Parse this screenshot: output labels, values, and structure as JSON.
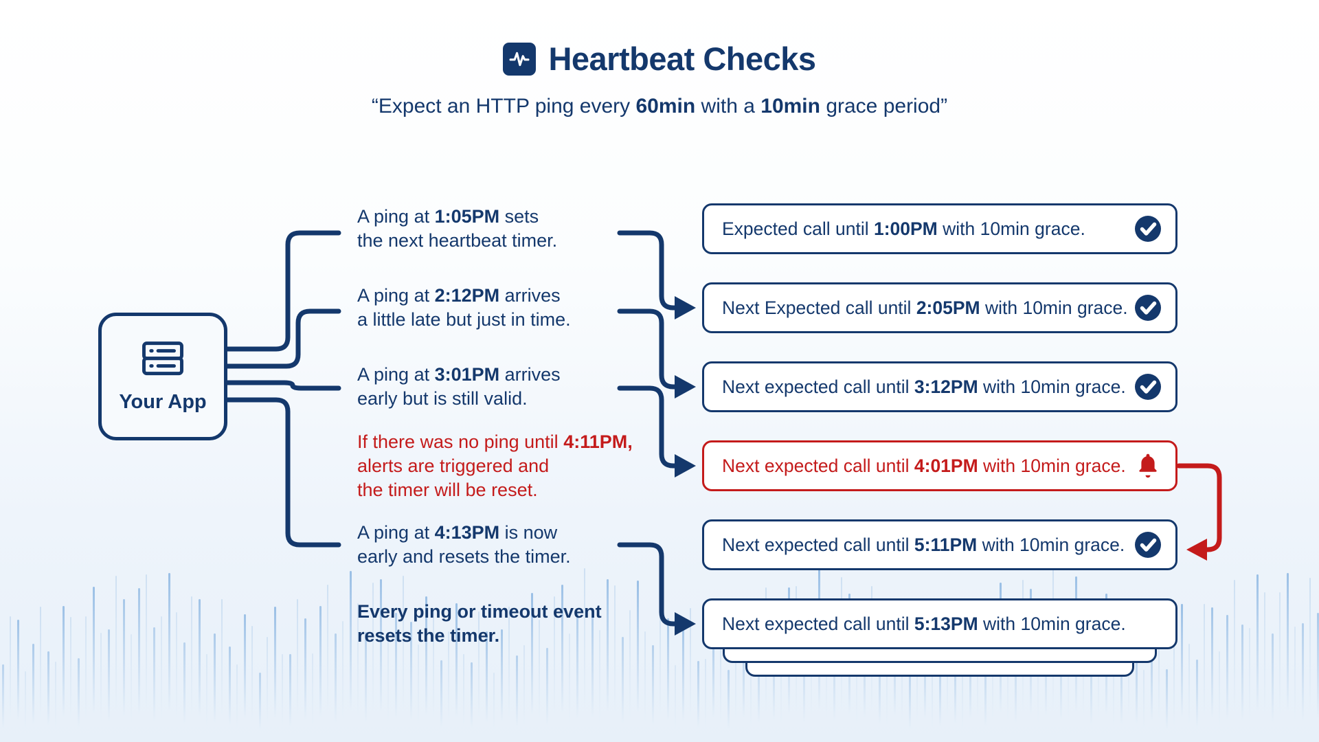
{
  "colors": {
    "navy": "#14386c",
    "red": "#c41b1b",
    "background_top": "#ffffff",
    "background_bottom": "#e7f0f9",
    "card_background": "#ffffff",
    "app_box_background": "#f7fafd",
    "waveform_bar": "#9cc0e4"
  },
  "header": {
    "icon": "pulse-icon",
    "title": "Heartbeat Checks",
    "subtitle_segments": [
      {
        "t": "“Expect an HTTP ping every ",
        "b": false
      },
      {
        "t": "60min",
        "b": true
      },
      {
        "t": " with a ",
        "b": false
      },
      {
        "t": "10min",
        "b": true
      },
      {
        "t": " grace period”",
        "b": false
      }
    ]
  },
  "app_box": {
    "icon": "server-icon",
    "label": "Your App"
  },
  "annotations": [
    {
      "variant": "navy",
      "lines": [
        [
          {
            "t": "A ping at ",
            "b": false
          },
          {
            "t": "1:05PM",
            "b": true
          },
          {
            "t": " sets",
            "b": false
          }
        ],
        [
          {
            "t": "the next heartbeat timer.",
            "b": false
          }
        ]
      ]
    },
    {
      "variant": "navy",
      "lines": [
        [
          {
            "t": "A ping at ",
            "b": false
          },
          {
            "t": "2:12PM",
            "b": true
          },
          {
            "t": " arrives",
            "b": false
          }
        ],
        [
          {
            "t": "a little late but just in time.",
            "b": false
          }
        ]
      ]
    },
    {
      "variant": "navy",
      "lines": [
        [
          {
            "t": "A ping at ",
            "b": false
          },
          {
            "t": "3:01PM",
            "b": true
          },
          {
            "t": " arrives",
            "b": false
          }
        ],
        [
          {
            "t": "early but is still valid.",
            "b": false
          }
        ]
      ]
    },
    {
      "variant": "red",
      "lines": [
        [
          {
            "t": "If there was no ping until ",
            "b": false
          },
          {
            "t": "4:11PM",
            "b": true
          },
          {
            "t": ",",
            "b": true
          }
        ],
        [
          {
            "t": "alerts are triggered and",
            "b": false
          }
        ],
        [
          {
            "t": "the timer will be reset.",
            "b": false
          }
        ]
      ]
    },
    {
      "variant": "navy",
      "lines": [
        [
          {
            "t": "A ping at ",
            "b": false
          },
          {
            "t": "4:13PM",
            "b": true
          },
          {
            "t": " is now",
            "b": false
          }
        ],
        [
          {
            "t": "early and resets the timer.",
            "b": false
          }
        ]
      ]
    },
    {
      "variant": "navy-bold",
      "lines": [
        [
          {
            "t": "Every ping or timeout event",
            "b": true
          }
        ],
        [
          {
            "t": "resets the timer.",
            "b": true
          }
        ]
      ]
    }
  ],
  "events": [
    {
      "variant": "navy",
      "icon": "check-icon",
      "segments": [
        {
          "t": "Expected call until ",
          "b": false
        },
        {
          "t": "1:00PM",
          "b": true
        },
        {
          "t": " with 10min grace.",
          "b": false
        }
      ]
    },
    {
      "variant": "navy",
      "icon": "check-icon",
      "segments": [
        {
          "t": "Next Expected call until ",
          "b": false
        },
        {
          "t": "2:05PM",
          "b": true
        },
        {
          "t": " with 10min grace.",
          "b": false
        }
      ]
    },
    {
      "variant": "navy",
      "icon": "check-icon",
      "segments": [
        {
          "t": "Next expected call until ",
          "b": false
        },
        {
          "t": "3:12PM",
          "b": true
        },
        {
          "t": " with 10min grace.",
          "b": false
        }
      ]
    },
    {
      "variant": "red",
      "icon": "bell-icon",
      "segments": [
        {
          "t": "Next expected call until ",
          "b": false
        },
        {
          "t": "4:01PM",
          "b": true
        },
        {
          "t": " with 10min grace.",
          "b": false
        }
      ]
    },
    {
      "variant": "navy",
      "icon": "check-icon",
      "segments": [
        {
          "t": "Next expected call until ",
          "b": false
        },
        {
          "t": "5:11PM",
          "b": true
        },
        {
          "t": " with 10min grace.",
          "b": false
        }
      ]
    },
    {
      "variant": "navy",
      "icon": "none",
      "segments": [
        {
          "t": "Next expected call until ",
          "b": false
        },
        {
          "t": "5:13PM",
          "b": true
        },
        {
          "t": " with 10min grace.",
          "b": false
        }
      ]
    }
  ]
}
